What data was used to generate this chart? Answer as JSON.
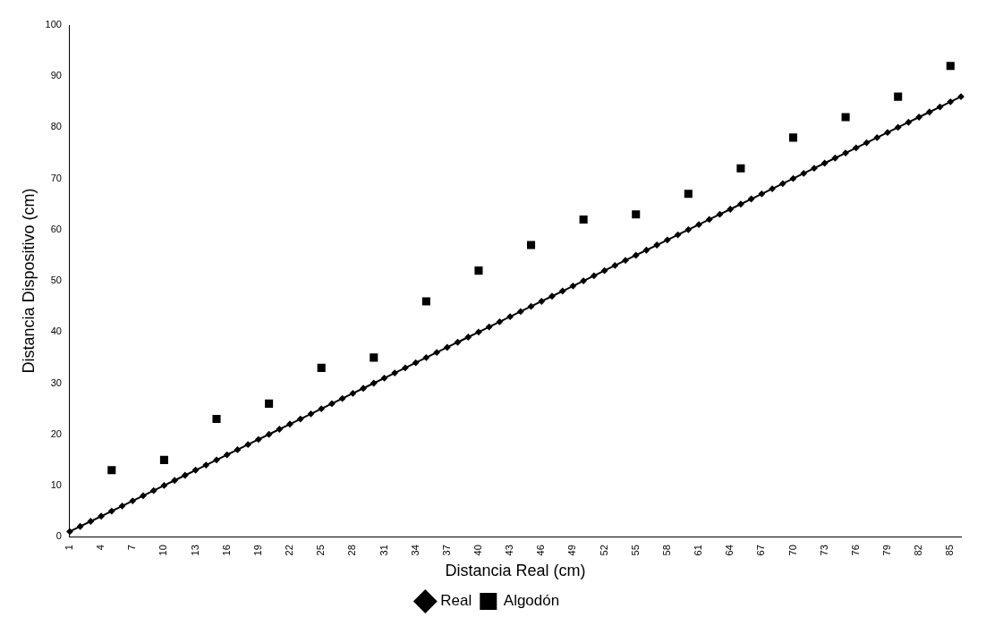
{
  "chart_data": {
    "type": "line",
    "xlabel": "Distancia Real (cm)",
    "ylabel": "Distancia Dispositivo (cm)",
    "categories": [
      "1",
      null,
      null,
      "4",
      null,
      null,
      "7",
      null,
      null,
      "10",
      null,
      null,
      "13",
      null,
      null,
      "16",
      null,
      null,
      "19",
      null,
      null,
      "22",
      null,
      null,
      "25",
      null,
      null,
      "28",
      null,
      null,
      "31",
      null,
      null,
      "34",
      null,
      null,
      "37",
      null,
      null,
      "40",
      null,
      null,
      "43",
      null,
      null,
      "46",
      null,
      null,
      "49",
      null,
      null,
      "52",
      null,
      null,
      "55",
      null,
      null,
      "58",
      null,
      null,
      "61",
      null,
      null,
      "64",
      null,
      null,
      "67",
      null,
      null,
      "70",
      null,
      null,
      "73",
      null,
      null,
      "76",
      null,
      null,
      "79",
      null,
      null,
      "82",
      null,
      null,
      "85",
      null
    ],
    "series": [
      {
        "name": "Real",
        "color": "#000000",
        "marker": "diamond",
        "line_style": "solid",
        "values": [
          1,
          2,
          3,
          4,
          5,
          6,
          7,
          8,
          9,
          10,
          11,
          12,
          13,
          14,
          15,
          16,
          17,
          18,
          19,
          20,
          21,
          22,
          23,
          24,
          25,
          26,
          27,
          28,
          29,
          30,
          31,
          32,
          33,
          34,
          35,
          36,
          37,
          38,
          39,
          40,
          41,
          42,
          43,
          44,
          45,
          46,
          47,
          48,
          49,
          50,
          51,
          52,
          53,
          54,
          55,
          56,
          57,
          58,
          59,
          60,
          61,
          62,
          63,
          64,
          65,
          66,
          67,
          68,
          69,
          70,
          71,
          72,
          73,
          74,
          75,
          76,
          77,
          78,
          79,
          80,
          81,
          82,
          83,
          84,
          85,
          86
        ]
      },
      {
        "name": "Algodón",
        "type": "scatter",
        "color": "#000000",
        "marker": "square",
        "values": [
          null,
          null,
          null,
          null,
          13,
          null,
          null,
          null,
          null,
          15,
          null,
          null,
          null,
          null,
          23,
          null,
          null,
          null,
          null,
          26,
          null,
          null,
          null,
          null,
          33,
          null,
          null,
          null,
          null,
          35,
          null,
          null,
          null,
          null,
          46,
          null,
          null,
          null,
          null,
          52,
          null,
          null,
          null,
          null,
          57,
          null,
          null,
          null,
          null,
          62,
          null,
          null,
          null,
          null,
          63,
          null,
          null,
          null,
          null,
          67,
          null,
          null,
          null,
          null,
          72,
          null,
          null,
          null,
          null,
          78,
          null,
          null,
          null,
          null,
          82,
          null,
          null,
          null,
          null,
          86,
          null,
          null,
          null,
          null,
          92,
          null
        ]
      }
    ],
    "ylim": [
      0,
      100
    ],
    "yticks": [
      0,
      10,
      20,
      30,
      40,
      50,
      60,
      70,
      80,
      90,
      100
    ],
    "grid": false,
    "legend": "bottom"
  }
}
